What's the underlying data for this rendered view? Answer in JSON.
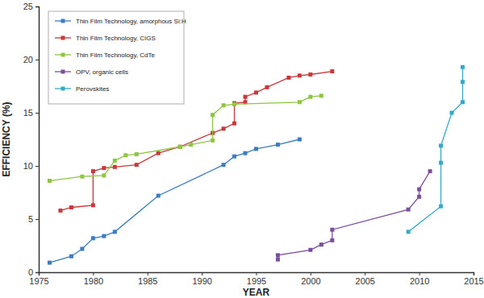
{
  "chart_data": {
    "type": "line",
    "x_label": "YEAR",
    "y_label": "EFFICIENCY (%)",
    "xlim": [
      1975,
      2015
    ],
    "xticks": [
      1975,
      1980,
      1985,
      1990,
      1995,
      2000,
      2005,
      2010,
      2015
    ],
    "ylim": [
      0,
      25
    ],
    "yticks": [
      0,
      5,
      10,
      15,
      20,
      25
    ],
    "grid": false,
    "legend": "upper left",
    "marker": "square",
    "series": [
      {
        "name": "Thin Film Technology, amorphous Si:H",
        "color": "#3b7cc4",
        "x": [
          1976,
          1978,
          1979,
          1980,
          1981,
          1982,
          1986,
          1992,
          1993,
          1994,
          1995,
          1997,
          1999
        ],
        "values": [
          0.9,
          1.5,
          2.2,
          3.2,
          3.4,
          3.8,
          7.2,
          10.1,
          10.9,
          11.2,
          11.6,
          12.0,
          12.5
        ]
      },
      {
        "name": "Thin Film Technology, CIGS",
        "color": "#c9393b",
        "x": [
          1977,
          1978,
          1980,
          1980,
          1981,
          1982,
          1984,
          1986,
          1988,
          1991,
          1992,
          1993,
          1993,
          1994,
          1994,
          1995,
          1996,
          1998,
          1999,
          2000,
          2002
        ],
        "values": [
          5.8,
          6.1,
          6.3,
          9.5,
          9.8,
          9.9,
          10.1,
          11.2,
          11.8,
          13.1,
          13.5,
          14.0,
          15.9,
          16.0,
          16.5,
          16.9,
          17.4,
          18.3,
          18.5,
          18.6,
          18.9
        ]
      },
      {
        "name": "Thin Film Technology, CdTe",
        "color": "#8dc63f",
        "x": [
          1976,
          1979,
          1981,
          1982,
          1983,
          1984,
          1988,
          1989,
          1991,
          1991,
          1992,
          1993,
          1999,
          2000,
          2001
        ],
        "values": [
          8.6,
          9.0,
          9.1,
          10.5,
          11.0,
          11.1,
          11.8,
          12.0,
          12.4,
          14.8,
          15.7,
          15.8,
          16.0,
          16.5,
          16.6
        ]
      },
      {
        "name": "OPV, organic cells",
        "color": "#7b4fa0",
        "x": [
          1997,
          1997,
          2000,
          2001,
          2002,
          2002,
          2009,
          2010,
          2010,
          2011
        ],
        "values": [
          1.2,
          1.6,
          2.1,
          2.6,
          3.0,
          4.0,
          5.9,
          7.1,
          7.8,
          9.5
        ]
      },
      {
        "name": "Perovskites",
        "color": "#35aac8",
        "x": [
          2009,
          2012,
          2012,
          2012,
          2013,
          2014,
          2014,
          2014
        ],
        "values": [
          3.8,
          6.2,
          10.3,
          11.9,
          15.0,
          16.0,
          17.9,
          19.3
        ]
      }
    ]
  }
}
